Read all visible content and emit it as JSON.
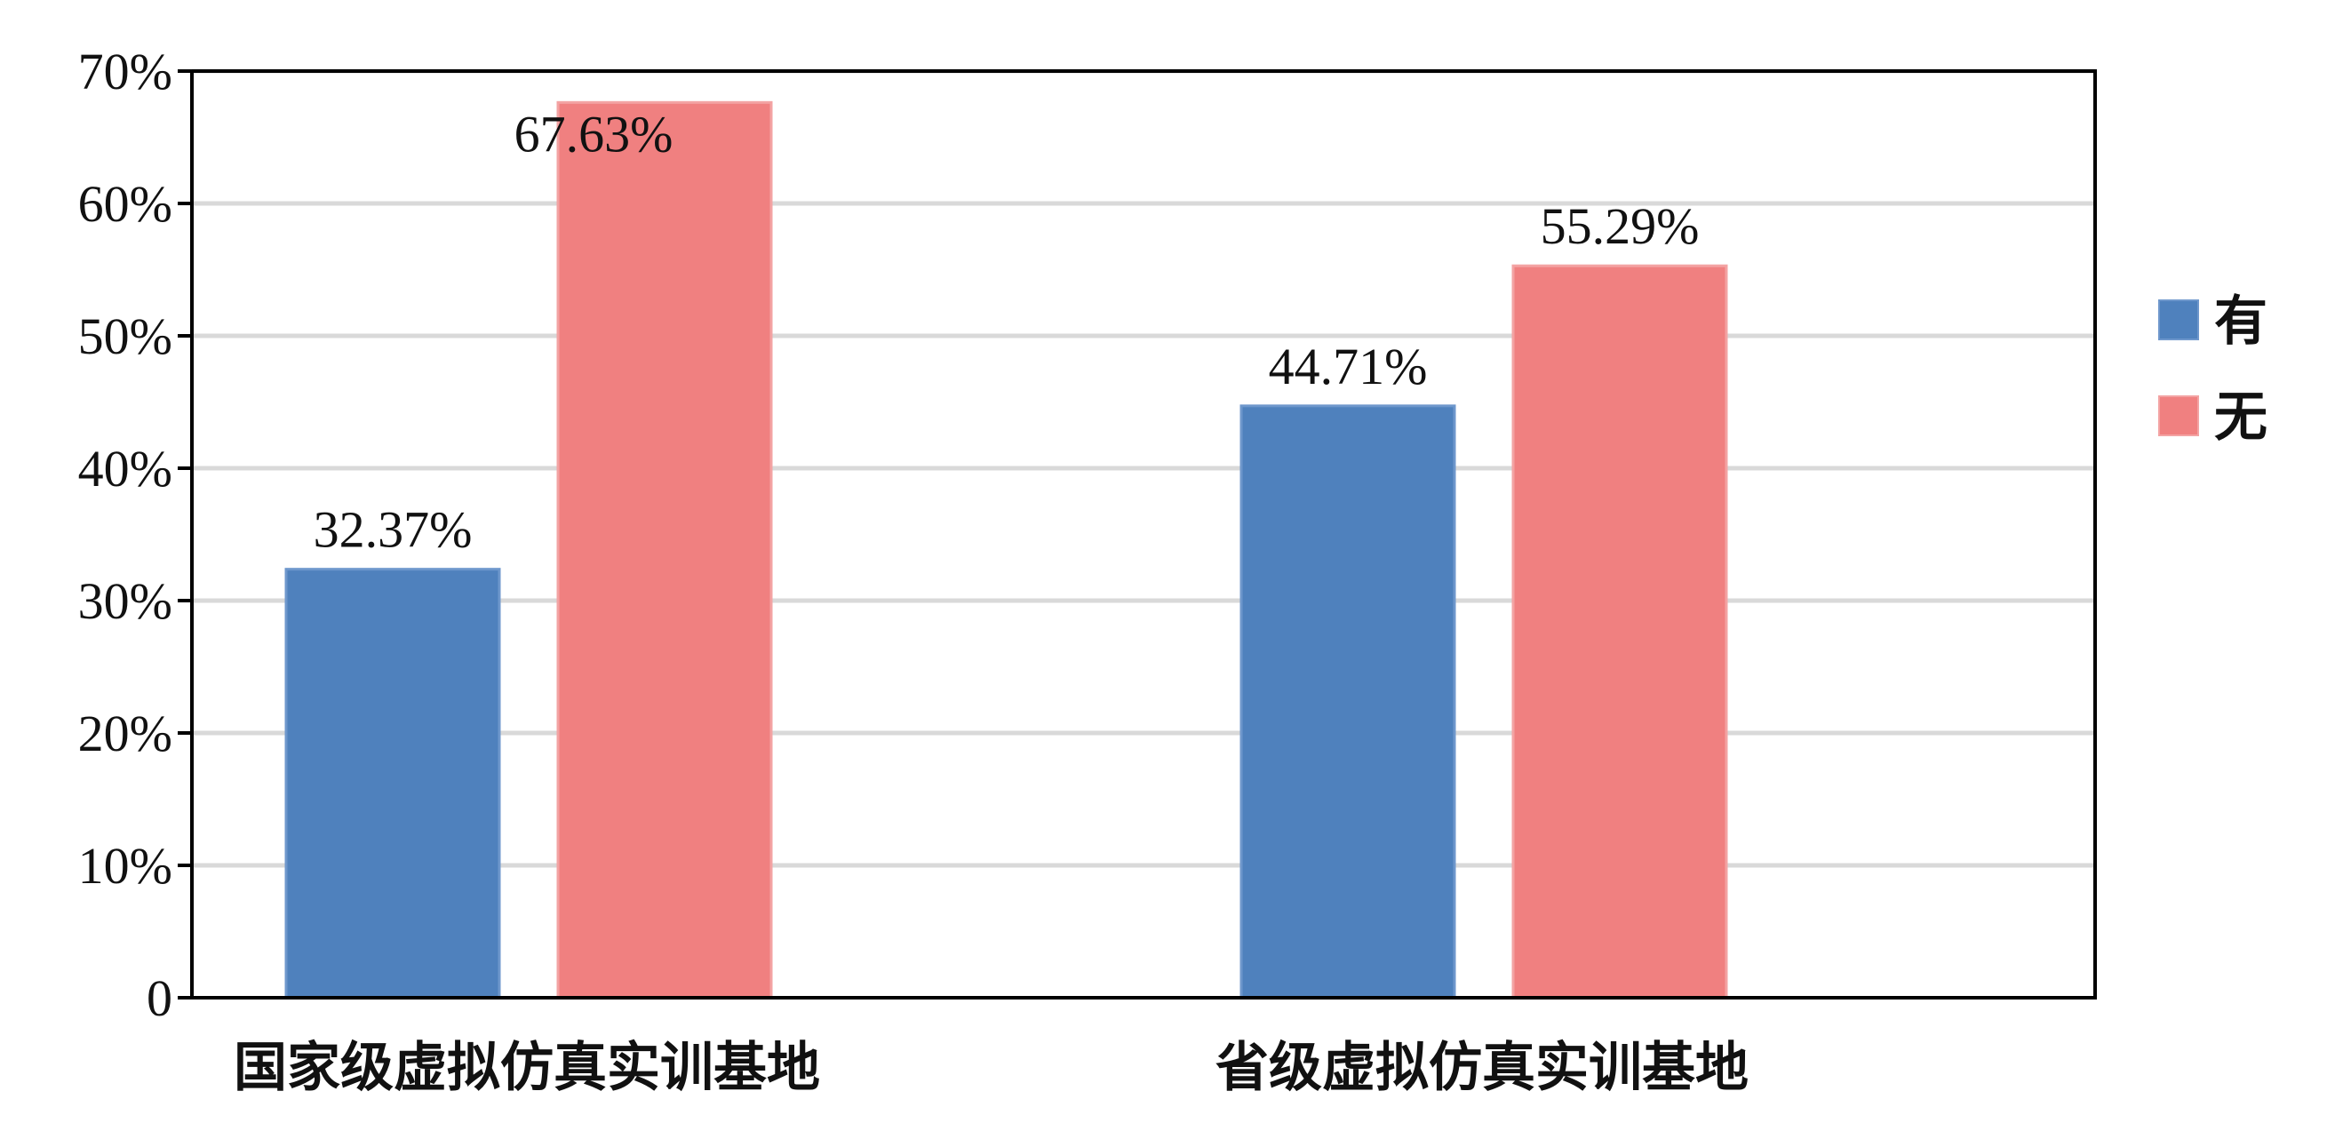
{
  "chart_data": {
    "type": "bar",
    "categories": [
      "国家级虚拟仿真实训基地",
      "省级虚拟仿真实训基地"
    ],
    "series": [
      {
        "name": "有",
        "values": [
          32.37,
          44.71
        ],
        "color": "#4f81bd"
      },
      {
        "name": "无",
        "values": [
          67.63,
          55.29
        ],
        "color": "#f08080"
      }
    ],
    "value_labels": [
      [
        "32.37%",
        "44.71%"
      ],
      [
        "67.63%",
        "55.29%"
      ]
    ],
    "ylim": [
      0,
      70
    ],
    "yticks": [
      0,
      10,
      20,
      30,
      40,
      50,
      60,
      70
    ],
    "ytick_labels": [
      "0",
      "10%",
      "20%",
      "30%",
      "40%",
      "50%",
      "60%",
      "70%"
    ],
    "xlabel": "",
    "ylabel": "",
    "title": "",
    "grid": true,
    "legend_position": "right"
  }
}
